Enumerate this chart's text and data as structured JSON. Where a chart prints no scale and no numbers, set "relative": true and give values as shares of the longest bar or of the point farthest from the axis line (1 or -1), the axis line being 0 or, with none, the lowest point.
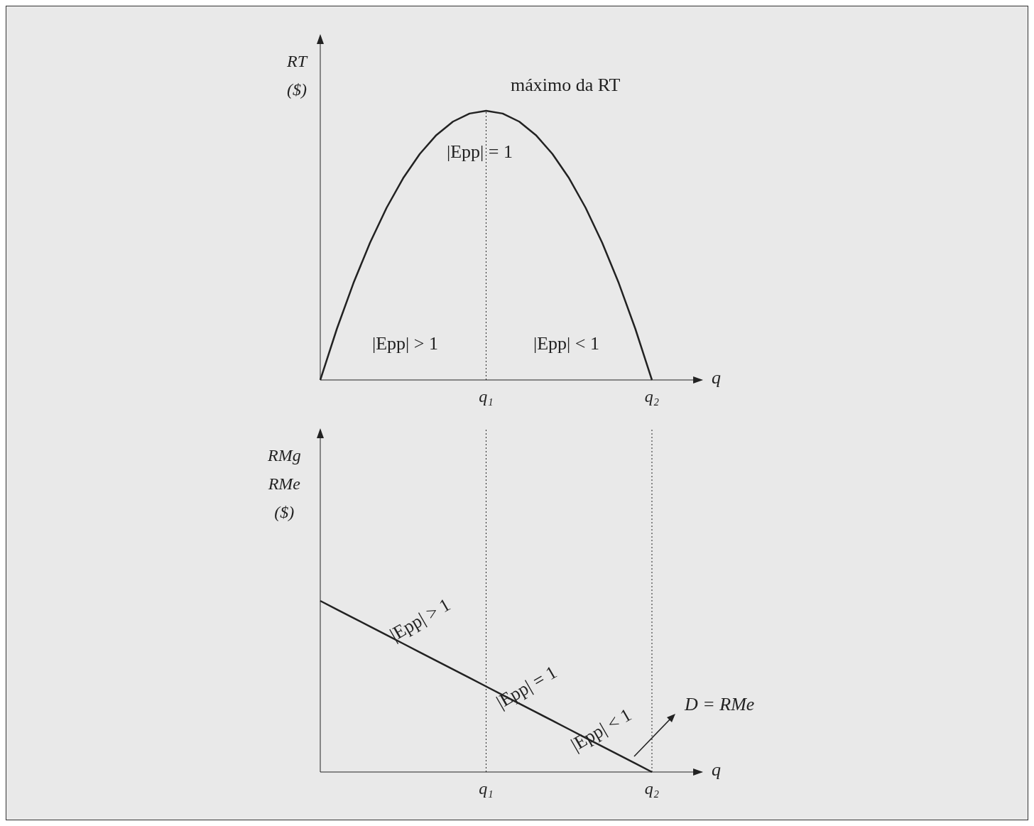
{
  "chart_data": [
    {
      "type": "line",
      "relative": true,
      "ylabel": "RT\n($)",
      "xlabel": "q",
      "marker": "none",
      "line_style": "solid",
      "grid": false,
      "legend": false,
      "categories": [
        null,
        null,
        null,
        null,
        null,
        null,
        null,
        null,
        null,
        null,
        "q₁",
        null,
        null,
        null,
        null,
        null,
        null,
        null,
        null,
        null,
        "q₂",
        null,
        null,
        null
      ],
      "series": [
        {
          "color": "#222222",
          "values": [
            0,
            0.19,
            0.36,
            0.51,
            0.64,
            0.75,
            0.84,
            0.91,
            0.96,
            0.99,
            1,
            0.99,
            0.96,
            0.91,
            0.84,
            0.75,
            0.64,
            0.51,
            0.36,
            0.19,
            0,
            null,
            null,
            null
          ]
        }
      ],
      "ref_lines": [
        {
          "axis": "x",
          "value": "q₁",
          "line_style": "dotted"
        }
      ],
      "annotations": [
        "máximo da RT",
        "|Epp| = 1",
        "|Epp| > 1",
        "|Epp| < 1"
      ]
    },
    {
      "type": "line",
      "relative": true,
      "ylabel": "RMg\nRMe\n($)",
      "xlabel": "q",
      "marker": "none",
      "line_style": "solid",
      "grid": false,
      "legend": false,
      "categories": [
        null,
        null,
        null,
        null,
        null,
        null,
        null,
        null,
        null,
        null,
        "q₁",
        null,
        null,
        null,
        null,
        null,
        null,
        null,
        null,
        null,
        "q₂",
        null,
        null,
        null
      ],
      "series": [
        {
          "name": "D = RMe",
          "color": "#222222",
          "values": [
            1,
            0.95,
            0.9,
            0.85,
            0.8,
            0.75,
            0.7,
            0.65,
            0.6,
            0.55,
            0.5,
            0.45,
            0.4,
            0.35,
            0.3,
            0.25,
            0.2,
            0.15,
            0.1,
            0.05,
            0,
            null,
            null,
            null
          ]
        }
      ],
      "ref_lines": [
        {
          "axis": "x",
          "value": "q₁",
          "line_style": "dotted"
        },
        {
          "axis": "x",
          "value": "q₂",
          "line_style": "dotted"
        }
      ],
      "annotations": [
        "|Epp| > 1",
        "|Epp| = 1",
        "|Epp| < 1"
      ]
    }
  ]
}
